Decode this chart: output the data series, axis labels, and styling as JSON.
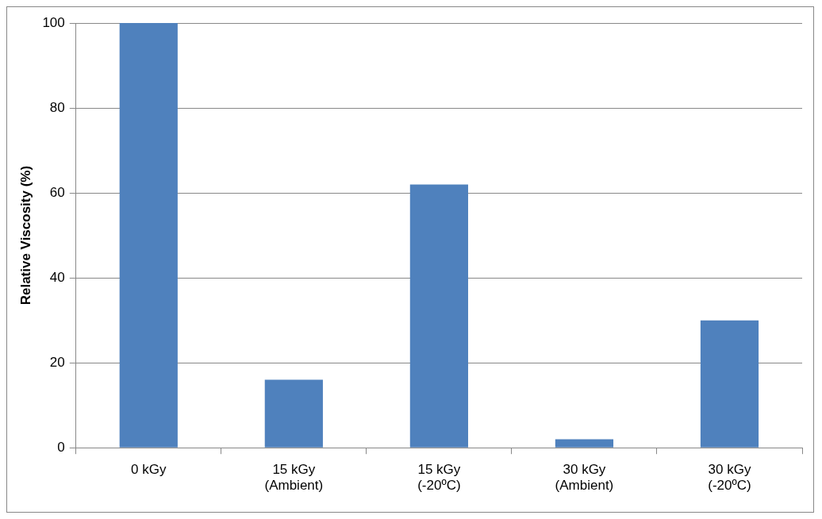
{
  "chart_data": {
    "type": "bar",
    "ylabel": "Relative Viscosity (%)",
    "categories": [
      "0 kGy",
      "15 kGy\n(Ambient)",
      "15 kGy\n(-20ºC)",
      "30 kGy\n(Ambient)",
      "30 kGy\n(-20ºC)"
    ],
    "values": [
      100,
      16,
      62,
      2,
      30
    ],
    "color": "#4f81bd",
    "ylim": [
      0,
      100
    ],
    "yticks": [
      0,
      20,
      40,
      60,
      80,
      100
    ],
    "grid": "y"
  }
}
